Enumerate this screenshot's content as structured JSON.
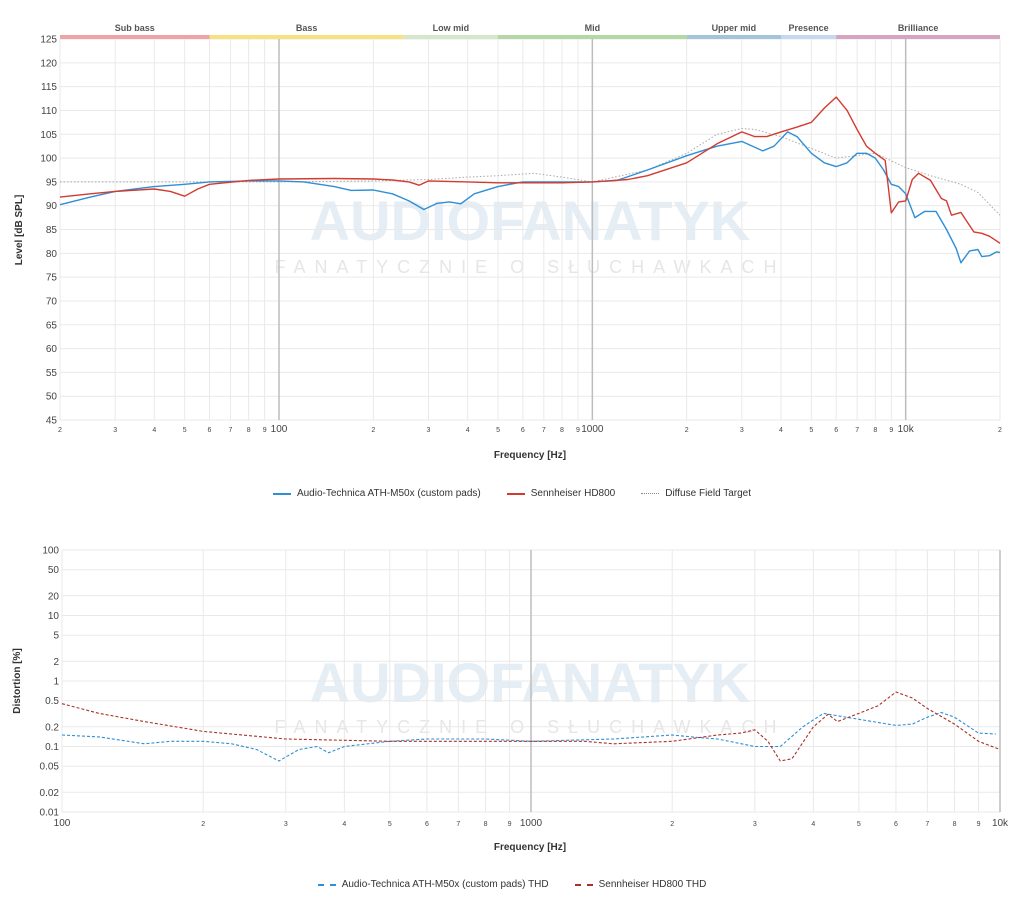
{
  "colors": {
    "atm50x": "#2f8ed6",
    "hd800": "#d23b30",
    "target": "#a8a8a8",
    "grid": "#e9e9e9",
    "band_sub_bass": "#f0a3a6",
    "band_bass": "#f6e27e",
    "band_low_mid": "#d5e6c9",
    "band_mid": "#b4d8a4",
    "band_upper_mid": "#a4c4d8",
    "band_presence": "#c6d8ee",
    "band_brilliance": "#d7a4bf"
  },
  "watermark": {
    "logo": "AUDIOFANATYK",
    "tagline": "FANATYCZNIE O SŁUCHAWKACH"
  },
  "fr_chart": {
    "ylabel": "Level [dB SPL]",
    "xlabel": "Frequency [Hz]",
    "ytick_labels": [
      "125",
      "120",
      "115",
      "110",
      "105",
      "100",
      "95",
      "90",
      "85",
      "80",
      "75",
      "70",
      "65",
      "60",
      "55",
      "50",
      "45"
    ],
    "xtick_labels": [
      "2",
      "3",
      "4",
      "5",
      "6",
      "7",
      "8",
      "9",
      "100",
      "2",
      "3",
      "4",
      "5",
      "6",
      "7",
      "8",
      "9",
      "1000",
      "2",
      "3",
      "4",
      "5",
      "6",
      "7",
      "8",
      "9",
      "10k",
      "2"
    ],
    "bands": [
      {
        "label": "Sub bass"
      },
      {
        "label": "Bass"
      },
      {
        "label": "Low mid"
      },
      {
        "label": "Mid"
      },
      {
        "label": "Upper mid"
      },
      {
        "label": "Presence"
      },
      {
        "label": "Brilliance"
      }
    ],
    "legend": [
      {
        "label": "Audio-Technica ATH-M50x (custom pads)"
      },
      {
        "label": "Sennheiser HD800"
      },
      {
        "label": "Diffuse Field Target"
      }
    ]
  },
  "thd_chart": {
    "ylabel": "Distortion [%]",
    "xlabel": "Frequency [Hz]",
    "ytick_labels": [
      "100",
      "50",
      "20",
      "10",
      "5",
      "2",
      "1",
      "0.5",
      "0.2",
      "0.1",
      "0.05",
      "0.02",
      "0.01"
    ],
    "xtick_labels": [
      "100",
      "2",
      "3",
      "4",
      "5",
      "6",
      "7",
      "8",
      "9",
      "1000",
      "2",
      "3",
      "4",
      "5",
      "6",
      "7",
      "8",
      "9",
      "10k"
    ],
    "legend": [
      {
        "label": "Audio-Technica ATH-M50x (custom pads) THD"
      },
      {
        "label": "Sennheiser HD800 THD"
      }
    ]
  },
  "chart_data": [
    {
      "type": "line",
      "x_scale": "log",
      "xlim": [
        20,
        20000
      ],
      "ylim": [
        45,
        125
      ],
      "bands": [
        {
          "label": "Sub bass",
          "from": 20,
          "to": 60
        },
        {
          "label": "Bass",
          "from": 60,
          "to": 250
        },
        {
          "label": "Low mid",
          "from": 250,
          "to": 500
        },
        {
          "label": "Mid",
          "from": 500,
          "to": 2000
        },
        {
          "label": "Upper mid",
          "from": 2000,
          "to": 4000
        },
        {
          "label": "Presence",
          "from": 4000,
          "to": 6000
        },
        {
          "label": "Brilliance",
          "from": 6000,
          "to": 20000
        }
      ],
      "series": [
        {
          "name": "Audio-Technica ATH-M50x (custom pads)",
          "style": "solid",
          "color": "#2f8ed6",
          "points": [
            [
              20,
              90.2
            ],
            [
              25,
              91.8
            ],
            [
              30,
              93
            ],
            [
              40,
              94
            ],
            [
              50,
              94.5
            ],
            [
              60,
              95
            ],
            [
              80,
              95.2
            ],
            [
              100,
              95.2
            ],
            [
              120,
              95
            ],
            [
              150,
              94
            ],
            [
              170,
              93.2
            ],
            [
              200,
              93.3
            ],
            [
              230,
              92.5
            ],
            [
              260,
              91
            ],
            [
              290,
              89.2
            ],
            [
              320,
              90.5
            ],
            [
              350,
              90.8
            ],
            [
              380,
              90.4
            ],
            [
              420,
              92.5
            ],
            [
              500,
              94
            ],
            [
              600,
              95
            ],
            [
              800,
              95
            ],
            [
              1000,
              95
            ],
            [
              1200,
              95.3
            ],
            [
              1500,
              97.5
            ],
            [
              2000,
              100.5
            ],
            [
              2500,
              102.5
            ],
            [
              3000,
              103.5
            ],
            [
              3500,
              101.5
            ],
            [
              3800,
              102.5
            ],
            [
              4200,
              105.5
            ],
            [
              4500,
              104.5
            ],
            [
              5000,
              101
            ],
            [
              5500,
              99
            ],
            [
              6000,
              98.2
            ],
            [
              6500,
              99
            ],
            [
              7000,
              101
            ],
            [
              7500,
              101
            ],
            [
              8000,
              100
            ],
            [
              8500,
              97.5
            ],
            [
              9000,
              94.5
            ],
            [
              9500,
              94
            ],
            [
              10000,
              92.5
            ],
            [
              10700,
              87.5
            ],
            [
              11500,
              88.8
            ],
            [
              12500,
              88.8
            ],
            [
              13500,
              85
            ],
            [
              14500,
              81
            ],
            [
              15000,
              78
            ],
            [
              16000,
              80.5
            ],
            [
              17000,
              80.8
            ],
            [
              17500,
              79.3
            ],
            [
              18500,
              79.5
            ],
            [
              19500,
              80.3
            ],
            [
              20000,
              80.2
            ]
          ]
        },
        {
          "name": "Sennheiser HD800",
          "style": "solid",
          "color": "#d23b30",
          "points": [
            [
              20,
              91.8
            ],
            [
              25,
              92.5
            ],
            [
              30,
              93
            ],
            [
              40,
              93.5
            ],
            [
              45,
              93
            ],
            [
              50,
              92
            ],
            [
              55,
              93.5
            ],
            [
              60,
              94.5
            ],
            [
              80,
              95.3
            ],
            [
              100,
              95.6
            ],
            [
              150,
              95.7
            ],
            [
              200,
              95.6
            ],
            [
              230,
              95.4
            ],
            [
              260,
              95
            ],
            [
              280,
              94.3
            ],
            [
              300,
              95.2
            ],
            [
              400,
              95
            ],
            [
              500,
              94.8
            ],
            [
              800,
              94.8
            ],
            [
              1000,
              95
            ],
            [
              1300,
              95.5
            ],
            [
              1500,
              96.3
            ],
            [
              2000,
              99
            ],
            [
              2500,
              103
            ],
            [
              3000,
              105.5
            ],
            [
              3300,
              104.5
            ],
            [
              3600,
              104.5
            ],
            [
              4000,
              105.5
            ],
            [
              4500,
              106.5
            ],
            [
              5000,
              107.5
            ],
            [
              5500,
              110.5
            ],
            [
              6000,
              112.8
            ],
            [
              6500,
              110
            ],
            [
              7000,
              106
            ],
            [
              7500,
              102.5
            ],
            [
              8000,
              101
            ],
            [
              8600,
              99.5
            ],
            [
              9000,
              88.5
            ],
            [
              9500,
              90.8
            ],
            [
              10000,
              91
            ],
            [
              10500,
              95.5
            ],
            [
              11000,
              96.8
            ],
            [
              12000,
              95.3
            ],
            [
              13000,
              91.5
            ],
            [
              13500,
              91
            ],
            [
              14000,
              88
            ],
            [
              15000,
              88.6
            ],
            [
              16500,
              84.5
            ],
            [
              17500,
              84.2
            ],
            [
              18500,
              83.6
            ],
            [
              19500,
              82.6
            ],
            [
              20000,
              82.1
            ]
          ]
        },
        {
          "name": "Diffuse Field Target",
          "style": "dotted",
          "color": "#a8a8a8",
          "points": [
            [
              20,
              95
            ],
            [
              100,
              95
            ],
            [
              200,
              95.2
            ],
            [
              300,
              95.5
            ],
            [
              400,
              96
            ],
            [
              500,
              96.3
            ],
            [
              650,
              96.8
            ],
            [
              800,
              96
            ],
            [
              1000,
              95
            ],
            [
              1500,
              97.5
            ],
            [
              2000,
              101
            ],
            [
              2500,
              105
            ],
            [
              3000,
              106.2
            ],
            [
              3300,
              106
            ],
            [
              4000,
              104.5
            ],
            [
              5000,
              102
            ],
            [
              6000,
              100
            ],
            [
              8000,
              101
            ],
            [
              10000,
              98
            ],
            [
              12000,
              96.3
            ],
            [
              15000,
              94.5
            ],
            [
              17000,
              92.8
            ],
            [
              20000,
              88
            ]
          ]
        }
      ]
    },
    {
      "type": "line",
      "x_scale": "log",
      "y_scale": "log",
      "xlim": [
        100,
        10000
      ],
      "ylim": [
        0.01,
        100
      ],
      "series": [
        {
          "name": "Audio-Technica ATH-M50x (custom pads) THD",
          "style": "dashed",
          "color": "#2f8ed6",
          "points": [
            [
              100,
              0.15
            ],
            [
              120,
              0.14
            ],
            [
              150,
              0.11
            ],
            [
              170,
              0.12
            ],
            [
              200,
              0.12
            ],
            [
              230,
              0.11
            ],
            [
              260,
              0.09
            ],
            [
              290,
              0.06
            ],
            [
              320,
              0.09
            ],
            [
              350,
              0.1
            ],
            [
              370,
              0.08
            ],
            [
              400,
              0.1
            ],
            [
              500,
              0.12
            ],
            [
              600,
              0.13
            ],
            [
              800,
              0.13
            ],
            [
              1000,
              0.12
            ],
            [
              1500,
              0.13
            ],
            [
              2000,
              0.15
            ],
            [
              2200,
              0.14
            ],
            [
              2500,
              0.13
            ],
            [
              3000,
              0.1
            ],
            [
              3400,
              0.1
            ],
            [
              3800,
              0.2
            ],
            [
              4200,
              0.32
            ],
            [
              5000,
              0.26
            ],
            [
              6000,
              0.21
            ],
            [
              6500,
              0.22
            ],
            [
              7000,
              0.28
            ],
            [
              7500,
              0.33
            ],
            [
              8000,
              0.28
            ],
            [
              9000,
              0.16
            ],
            [
              9800,
              0.155
            ]
          ]
        },
        {
          "name": "Sennheiser HD800 THD",
          "style": "dashed",
          "color": "#a93228",
          "points": [
            [
              100,
              0.45
            ],
            [
              120,
              0.32
            ],
            [
              150,
              0.24
            ],
            [
              200,
              0.17
            ],
            [
              300,
              0.13
            ],
            [
              500,
              0.12
            ],
            [
              800,
              0.12
            ],
            [
              1000,
              0.12
            ],
            [
              1300,
              0.12
            ],
            [
              1500,
              0.11
            ],
            [
              2000,
              0.12
            ],
            [
              2500,
              0.15
            ],
            [
              2800,
              0.16
            ],
            [
              3000,
              0.18
            ],
            [
              3200,
              0.12
            ],
            [
              3400,
              0.06
            ],
            [
              3600,
              0.065
            ],
            [
              4000,
              0.2
            ],
            [
              4300,
              0.31
            ],
            [
              4500,
              0.24
            ],
            [
              5000,
              0.32
            ],
            [
              5500,
              0.42
            ],
            [
              6000,
              0.68
            ],
            [
              6500,
              0.55
            ],
            [
              7000,
              0.38
            ],
            [
              8000,
              0.22
            ],
            [
              9000,
              0.12
            ],
            [
              10000,
              0.09
            ]
          ]
        }
      ]
    }
  ]
}
